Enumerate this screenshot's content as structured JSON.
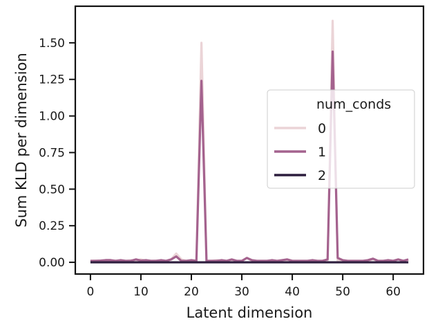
{
  "chart_data": {
    "type": "line",
    "xlabel": "Latent dimension",
    "ylabel": "Sum KLD per dimension",
    "xlim": [
      -3,
      66
    ],
    "ylim": [
      -0.08,
      1.75
    ],
    "xticks": [
      0,
      10,
      20,
      30,
      40,
      50,
      60
    ],
    "yticks": [
      0.0,
      0.25,
      0.5,
      0.75,
      1.0,
      1.25,
      1.5
    ],
    "ytick_labels": [
      "0.00",
      "0.25",
      "0.50",
      "0.75",
      "1.00",
      "1.25",
      "1.50"
    ],
    "grid": false,
    "legend": {
      "title": "num_conds",
      "position": "center-right"
    },
    "series": [
      {
        "name": "0",
        "color": "#e8cdd0",
        "opacity": 0.85,
        "x": [
          0,
          1,
          2,
          3,
          4,
          5,
          6,
          7,
          8,
          9,
          10,
          11,
          12,
          13,
          14,
          15,
          16,
          17,
          18,
          19,
          20,
          21,
          22,
          23,
          24,
          25,
          26,
          27,
          28,
          29,
          30,
          31,
          32,
          33,
          34,
          35,
          36,
          37,
          38,
          39,
          40,
          41,
          42,
          43,
          44,
          45,
          46,
          47,
          48,
          49,
          50,
          51,
          52,
          53,
          54,
          55,
          56,
          57,
          58,
          59,
          60,
          61,
          62,
          63
        ],
        "values": [
          0.01,
          0.012,
          0.01,
          0.015,
          0.01,
          0.012,
          0.01,
          0.01,
          0.015,
          0.01,
          0.02,
          0.01,
          0.01,
          0.012,
          0.01,
          0.01,
          0.02,
          0.06,
          0.02,
          0.01,
          0.01,
          0.01,
          1.5,
          0.01,
          0.01,
          0.015,
          0.01,
          0.01,
          0.01,
          0.01,
          0.01,
          0.03,
          0.01,
          0.01,
          0.01,
          0.01,
          0.01,
          0.01,
          0.015,
          0.01,
          0.01,
          0.01,
          0.01,
          0.01,
          0.01,
          0.01,
          0.01,
          0.01,
          1.65,
          0.01,
          0.01,
          0.01,
          0.01,
          0.01,
          0.01,
          0.01,
          0.02,
          0.01,
          0.01,
          0.01,
          0.01,
          0.02,
          0.01,
          0.01
        ]
      },
      {
        "name": "1",
        "color": "#a4628e",
        "opacity": 1,
        "x": [
          0,
          1,
          2,
          3,
          4,
          5,
          6,
          7,
          8,
          9,
          10,
          11,
          12,
          13,
          14,
          15,
          16,
          17,
          18,
          19,
          20,
          21,
          22,
          23,
          24,
          25,
          26,
          27,
          28,
          29,
          30,
          31,
          32,
          33,
          34,
          35,
          36,
          37,
          38,
          39,
          40,
          41,
          42,
          43,
          44,
          45,
          46,
          47,
          48,
          49,
          50,
          51,
          52,
          53,
          54,
          55,
          56,
          57,
          58,
          59,
          60,
          61,
          62,
          63
        ],
        "values": [
          0.01,
          0.01,
          0.012,
          0.015,
          0.015,
          0.01,
          0.015,
          0.01,
          0.01,
          0.02,
          0.012,
          0.015,
          0.01,
          0.01,
          0.015,
          0.01,
          0.02,
          0.04,
          0.01,
          0.01,
          0.015,
          0.01,
          1.24,
          0.01,
          0.01,
          0.01,
          0.015,
          0.01,
          0.02,
          0.01,
          0.01,
          0.03,
          0.015,
          0.01,
          0.01,
          0.01,
          0.015,
          0.01,
          0.015,
          0.02,
          0.01,
          0.01,
          0.01,
          0.01,
          0.015,
          0.01,
          0.01,
          0.02,
          1.44,
          0.03,
          0.015,
          0.01,
          0.01,
          0.01,
          0.01,
          0.015,
          0.025,
          0.01,
          0.01,
          0.015,
          0.01,
          0.02,
          0.01,
          0.02
        ]
      },
      {
        "name": "2",
        "color": "#2d1e3e",
        "opacity": 1,
        "x": [
          0,
          1,
          2,
          3,
          4,
          5,
          6,
          7,
          8,
          9,
          10,
          11,
          12,
          13,
          14,
          15,
          16,
          17,
          18,
          19,
          20,
          21,
          22,
          23,
          24,
          25,
          26,
          27,
          28,
          29,
          30,
          31,
          32,
          33,
          34,
          35,
          36,
          37,
          38,
          39,
          40,
          41,
          42,
          43,
          44,
          45,
          46,
          47,
          48,
          49,
          50,
          51,
          52,
          53,
          54,
          55,
          56,
          57,
          58,
          59,
          60,
          61,
          62,
          63
        ],
        "values": [
          0,
          0,
          0,
          0,
          0,
          0,
          0,
          0,
          0,
          0,
          0,
          0,
          0,
          0,
          0,
          0,
          0,
          0,
          0,
          0,
          0,
          0,
          0,
          0,
          0,
          0,
          0,
          0,
          0,
          0,
          0,
          0,
          0,
          0,
          0,
          0,
          0,
          0,
          0,
          0,
          0,
          0,
          0,
          0,
          0,
          0,
          0,
          0,
          0,
          0,
          0,
          0,
          0,
          0,
          0,
          0,
          0,
          0,
          0,
          0,
          0,
          0,
          0,
          0
        ]
      }
    ]
  }
}
